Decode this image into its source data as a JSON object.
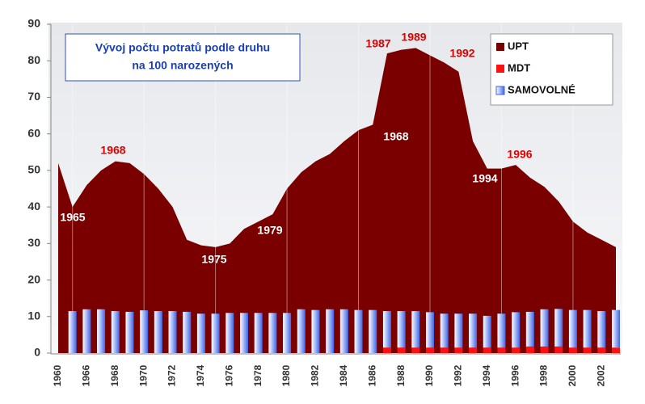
{
  "chart_data": {
    "type": "area",
    "title": [
      "Vývoj počtu potratů podle druhu",
      "na 100 narozených"
    ],
    "categories": [
      "1960",
      null,
      "1966",
      null,
      "1968",
      null,
      "1970",
      null,
      "1972",
      null,
      "1974",
      null,
      "1976",
      null,
      "1978",
      null,
      "1980",
      null,
      "1982",
      null,
      "1984",
      null,
      "1986",
      null,
      "1988",
      null,
      "1990",
      null,
      "1992",
      null,
      "1994",
      null,
      "1996",
      null,
      "1998",
      null,
      "2000",
      null,
      "2002",
      null
    ],
    "series": [
      {
        "name": "UPT",
        "type": "area",
        "color": "#7a0000",
        "values": [
          52,
          40,
          46,
          50,
          52.5,
          52,
          49,
          45,
          40,
          31,
          29.5,
          29,
          30,
          34,
          36,
          38,
          45,
          49.5,
          52.5,
          54.5,
          58,
          61,
          62.5,
          82,
          83,
          83.5,
          81.5,
          79.5,
          77,
          58,
          50.5,
          50.5,
          51.5,
          48,
          45.5,
          41.5,
          36,
          33,
          31,
          29
        ]
      },
      {
        "name": "MDT",
        "type": "bar",
        "color": "#ff1010",
        "values": [
          null,
          null,
          null,
          null,
          null,
          null,
          null,
          null,
          null,
          null,
          null,
          null,
          null,
          null,
          null,
          null,
          null,
          null,
          null,
          null,
          null,
          null,
          null,
          1.5,
          1.5,
          1.5,
          1.5,
          1.5,
          1.5,
          1.5,
          1.5,
          1.5,
          1.5,
          1.8,
          1.8,
          1.8,
          1.5,
          1.5,
          1.5,
          1.5
        ]
      },
      {
        "name": "SAMOVOLNÉ",
        "type": "bar",
        "color": "#3f64e8",
        "values": [
          null,
          11.5,
          12,
          12,
          11.5,
          11.3,
          11.7,
          11.5,
          11.5,
          11.3,
          10.8,
          10.8,
          11,
          11,
          11,
          11,
          11,
          12,
          11.8,
          12,
          12,
          11.8,
          11.8,
          10,
          10,
          10,
          9.7,
          9.3,
          9.3,
          9.3,
          8.7,
          9.3,
          9.7,
          9.5,
          10.2,
          10.3,
          10.3,
          10.3,
          10,
          10.3
        ]
      }
    ],
    "ylim": [
      0,
      90
    ],
    "yticks": [
      0,
      10,
      20,
      30,
      40,
      50,
      60,
      70,
      80,
      90
    ],
    "annotations": [
      {
        "text": "1965",
        "color": "#ffffff"
      },
      {
        "text": "1968",
        "color": "#e00000"
      },
      {
        "text": "1975",
        "color": "#ffffff"
      },
      {
        "text": "1979",
        "color": "#ffffff"
      },
      {
        "text": "1968",
        "color": "#ffffff"
      },
      {
        "text": "1987",
        "color": "#e00000"
      },
      {
        "text": "1989",
        "color": "#e00000"
      },
      {
        "text": "1992",
        "color": "#e00000"
      },
      {
        "text": "1994",
        "color": "#ffffff"
      },
      {
        "text": "1996",
        "color": "#e00000"
      }
    ]
  }
}
